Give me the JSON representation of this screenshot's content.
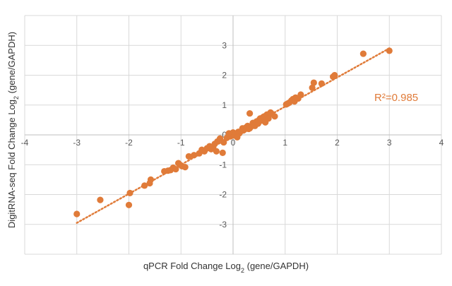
{
  "chart_data": {
    "type": "scatter",
    "title": "",
    "xlabel": {
      "prefix": "qPCR Fold Change  Log",
      "sub": "2",
      "suffix": " (gene/GAPDH)"
    },
    "ylabel": {
      "prefix": "DigitRNA-seq Fold Change  Log",
      "sub": "2",
      "suffix": " (gene/GAPDH)"
    },
    "xlim": [
      -4,
      4
    ],
    "ylim": [
      -4,
      4
    ],
    "x_ticks": [
      "-4",
      "-3",
      "-2",
      "-1",
      "0",
      "1",
      "2",
      "3",
      "4"
    ],
    "y_ticks": [
      "-3",
      "-2",
      "-1",
      "0",
      "1",
      "2",
      "3"
    ],
    "grid": true,
    "annotation": "R²=0.985",
    "marker_color": "#E07B39",
    "trendline": {
      "style": "dotted",
      "x": [
        -3.0,
        3.0
      ],
      "y": [
        -2.95,
        2.9
      ]
    },
    "series": [
      {
        "x": [
          -3.0,
          -2.55,
          -2.0,
          -1.98,
          -1.7,
          -1.58,
          -1.6,
          -1.32,
          -1.25,
          -1.2,
          -1.15,
          -1.1,
          -1.05,
          -1.02,
          -0.98,
          -0.92,
          -0.85,
          -0.75,
          -0.65,
          -0.6,
          -0.55,
          -0.5,
          -0.45,
          -0.42,
          -0.38,
          -0.35,
          -0.3,
          -0.32,
          -0.25,
          -0.2,
          -0.18,
          -0.12,
          -0.08,
          -0.05,
          -0.02,
          0.0,
          0.02,
          0.05,
          0.08,
          0.1,
          0.12,
          0.15,
          0.18,
          0.2,
          0.22,
          0.25,
          0.28,
          0.3,
          0.32,
          0.35,
          0.38,
          0.4,
          0.42,
          0.45,
          0.48,
          0.5,
          0.52,
          0.55,
          0.58,
          0.6,
          0.62,
          0.65,
          0.68,
          0.72,
          0.75,
          0.8,
          0.32,
          1.02,
          1.05,
          1.08,
          1.12,
          1.15,
          1.18,
          1.2,
          1.25,
          1.3,
          1.52,
          1.55,
          1.7,
          1.92,
          1.95,
          2.5,
          3.0
        ],
        "y": [
          -2.65,
          -2.18,
          -2.35,
          -1.95,
          -1.7,
          -1.5,
          -1.62,
          -1.22,
          -1.2,
          -1.18,
          -1.1,
          -1.15,
          -0.95,
          -1.0,
          -1.05,
          -1.08,
          -0.72,
          -0.68,
          -0.62,
          -0.5,
          -0.55,
          -0.45,
          -0.38,
          -0.48,
          -0.4,
          -0.3,
          -0.22,
          -0.55,
          -0.12,
          -0.6,
          -0.25,
          -0.1,
          0.05,
          -0.05,
          0.0,
          0.08,
          -0.02,
          0.03,
          -0.08,
          0.1,
          0.05,
          0.12,
          0.22,
          0.15,
          0.18,
          0.25,
          0.3,
          0.2,
          0.22,
          0.28,
          0.4,
          0.32,
          0.3,
          0.45,
          0.38,
          0.5,
          0.55,
          0.48,
          0.6,
          0.62,
          0.42,
          0.68,
          0.55,
          0.75,
          0.7,
          0.62,
          0.72,
          1.02,
          1.05,
          1.08,
          1.15,
          1.2,
          1.12,
          1.25,
          1.22,
          1.35,
          1.58,
          1.75,
          1.72,
          1.95,
          2.0,
          2.72,
          2.82
        ]
      }
    ]
  }
}
